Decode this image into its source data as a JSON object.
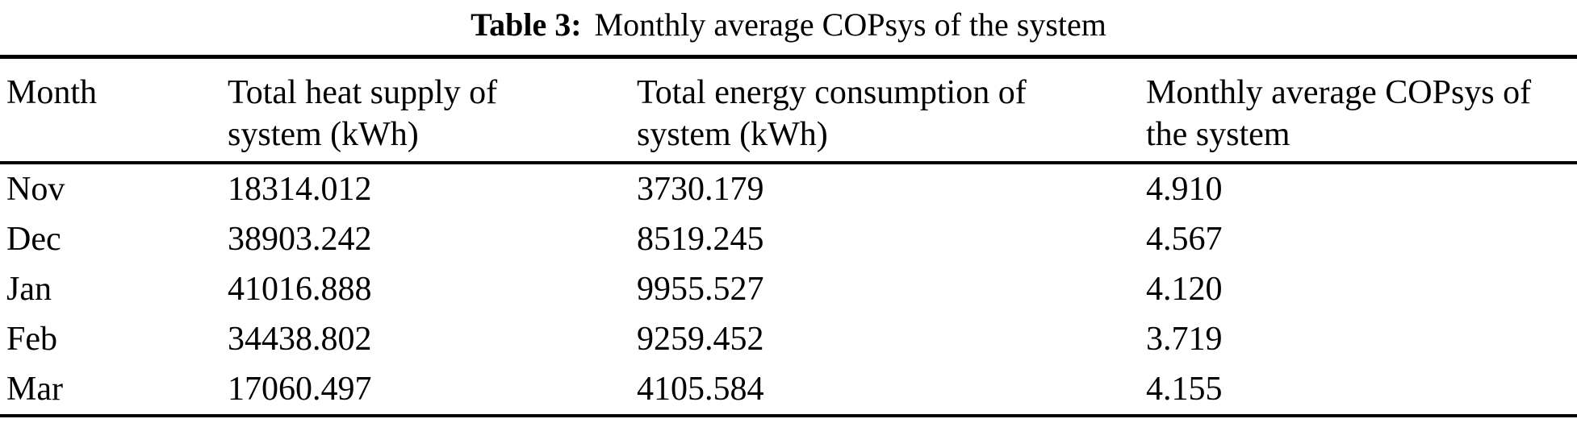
{
  "table": {
    "caption": {
      "label": "Table 3:",
      "text": "Monthly average COPsys of the system"
    },
    "columns": [
      "Month",
      "Total heat supply of system (kWh)",
      "Total energy consumption of system (kWh)",
      "Monthly average COPsys of the system"
    ],
    "rows": [
      [
        "Nov",
        "18314.012",
        "3730.179",
        "4.910"
      ],
      [
        "Dec",
        "38903.242",
        "8519.245",
        "4.567"
      ],
      [
        "Jan",
        "41016.888",
        "9955.527",
        "4.120"
      ],
      [
        "Feb",
        "34438.802",
        "9259.452",
        "3.719"
      ],
      [
        "Mar",
        "17060.497",
        "4105.584",
        "4.155"
      ]
    ]
  },
  "chart_data": {
    "type": "table",
    "title": "Table 3: Monthly average COPsys of the system",
    "categories": [
      "Nov",
      "Dec",
      "Jan",
      "Feb",
      "Mar"
    ],
    "series": [
      {
        "name": "Total heat supply of system (kWh)",
        "values": [
          18314.012,
          38903.242,
          41016.888,
          34438.802,
          17060.497
        ]
      },
      {
        "name": "Total energy consumption of system (kWh)",
        "values": [
          3730.179,
          8519.245,
          9955.527,
          9259.452,
          4105.584
        ]
      },
      {
        "name": "Monthly average COPsys of the system",
        "values": [
          4.91,
          4.567,
          4.12,
          3.719,
          4.155
        ]
      }
    ]
  },
  "colors": {
    "text": "#000000",
    "background": "#ffffff",
    "rule": "#000000"
  }
}
